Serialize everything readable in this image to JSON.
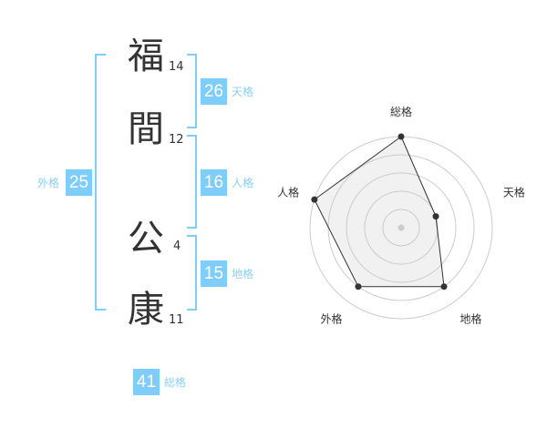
{
  "name": {
    "chars": [
      {
        "char": "福",
        "strokes": "14"
      },
      {
        "char": "間",
        "strokes": "12"
      },
      {
        "char": "公",
        "strokes": "4"
      },
      {
        "char": "康",
        "strokes": "11"
      }
    ]
  },
  "kaku": {
    "tenkaku": {
      "value": "26",
      "label": "天格"
    },
    "jinkaku": {
      "value": "16",
      "label": "人格"
    },
    "chikaku": {
      "value": "15",
      "label": "地格"
    },
    "gaikaku": {
      "value": "25",
      "label": "外格"
    },
    "soukaku": {
      "value": "41",
      "label": "総格"
    }
  },
  "colors": {
    "accent": "#7fcdfb",
    "label": "#8ccff5",
    "text": "#333333"
  },
  "chart_data": {
    "type": "radar",
    "categories": [
      "総格",
      "天格",
      "地格",
      "外格",
      "人格"
    ],
    "values": [
      5,
      2,
      4,
      4,
      5
    ],
    "range": [
      0,
      5
    ],
    "rings": 5
  }
}
